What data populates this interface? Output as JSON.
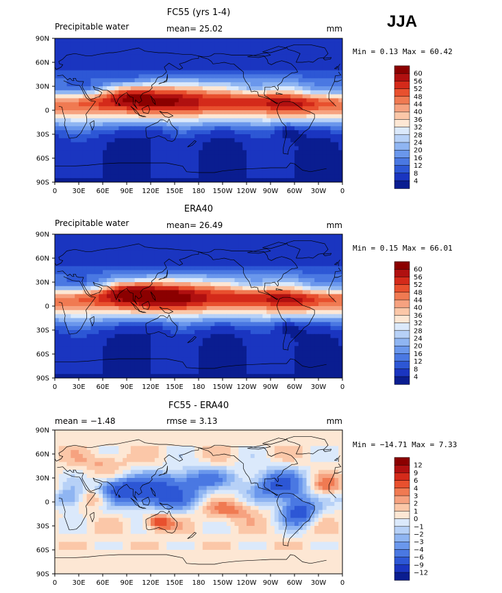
{
  "season_label": "JJA",
  "panels": [
    {
      "id": "model",
      "title": "FC55 (yrs 1-4)",
      "left_text": "Precipitable water",
      "center_text": "mean=  25.02",
      "right_text": "mm",
      "min_max_text": "Min =   0.13 Max =  60.42",
      "colorbar_labels": [
        "60",
        "56",
        "52",
        "48",
        "44",
        "40",
        "36",
        "32",
        "28",
        "24",
        "20",
        "16",
        "12",
        "8",
        "4"
      ],
      "colorbar_colors": [
        "#8b0000",
        "#b01010",
        "#d42a1a",
        "#e8502e",
        "#f07a52",
        "#f6a280",
        "#fbc7a8",
        "#fde7d4",
        "#dbe9fb",
        "#b7d1f7",
        "#8fb5f2",
        "#6a97ec",
        "#4a78e2",
        "#2d57d5",
        "#1a35c0",
        "#0a1d90"
      ],
      "field_type": "pw"
    },
    {
      "id": "obs",
      "title": "ERA40",
      "left_text": "Precipitable water",
      "center_text": "mean=  26.49",
      "right_text": "mm",
      "min_max_text": "Min =   0.15 Max =  66.01",
      "colorbar_labels": [
        "60",
        "56",
        "52",
        "48",
        "44",
        "40",
        "36",
        "32",
        "28",
        "24",
        "20",
        "16",
        "12",
        "8",
        "4"
      ],
      "colorbar_colors": [
        "#8b0000",
        "#b01010",
        "#d42a1a",
        "#e8502e",
        "#f07a52",
        "#f6a280",
        "#fbc7a8",
        "#fde7d4",
        "#dbe9fb",
        "#b7d1f7",
        "#8fb5f2",
        "#6a97ec",
        "#4a78e2",
        "#2d57d5",
        "#1a35c0",
        "#0a1d90"
      ],
      "field_type": "pw"
    },
    {
      "id": "diff",
      "title": "FC55 - ERA40",
      "left_text": "mean =  −1.48",
      "center_text": "rmse =   3.13",
      "right_text": "mm",
      "min_max_text": "Min = −14.71 Max =   7.33",
      "colorbar_labels": [
        "12",
        "9",
        "6",
        "4",
        "3",
        "2",
        "1",
        "0",
        "−1",
        "−2",
        "−3",
        "−4",
        "−6",
        "−9",
        "−12"
      ],
      "colorbar_colors": [
        "#8b0000",
        "#b01010",
        "#d42a1a",
        "#e8502e",
        "#f07a52",
        "#f6a280",
        "#fbc7a8",
        "#fde7d4",
        "#dbe9fb",
        "#b7d1f7",
        "#8fb5f2",
        "#6a97ec",
        "#4a78e2",
        "#2d57d5",
        "#1a35c0",
        "#0a1d90"
      ],
      "field_type": "diff"
    }
  ],
  "lat_labels": [
    "90N",
    "60N",
    "30N",
    "0",
    "30S",
    "60S",
    "90S"
  ],
  "lon_labels": [
    "0",
    "30E",
    "60E",
    "90E",
    "120E",
    "150E",
    "180",
    "150W",
    "120W",
    "90W",
    "60W",
    "30W",
    "0"
  ]
}
